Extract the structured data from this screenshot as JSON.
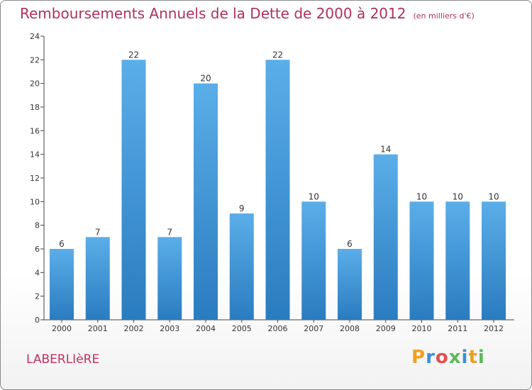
{
  "chart_data": {
    "type": "bar",
    "title": "Remboursements Annuels de la Dette de 2000 à 2012",
    "subtitle": "(en milliers d'€)",
    "categories": [
      "2000",
      "2001",
      "2002",
      "2003",
      "2004",
      "2005",
      "2006",
      "2007",
      "2008",
      "2009",
      "2010",
      "2011",
      "2012"
    ],
    "values": [
      6,
      7,
      22,
      7,
      20,
      9,
      22,
      10,
      6,
      14,
      10,
      10,
      10
    ],
    "ylim": [
      0,
      24
    ],
    "yticks": [
      0,
      2,
      4,
      6,
      8,
      10,
      12,
      14,
      16,
      18,
      20,
      22,
      24
    ],
    "grid": false,
    "legend": "none",
    "colors": {
      "bar_top": "#5aaee8",
      "bar_bottom": "#2a7cc0",
      "title": "#b0305d"
    }
  },
  "location": "LABERLIèRE",
  "logo": {
    "letters": [
      {
        "char": "P",
        "color": "#f0a020"
      },
      {
        "char": "r",
        "color": "#3a8fd8"
      },
      {
        "char": "o",
        "color": "#e05050"
      },
      {
        "char": "x",
        "color": "#5cb85c"
      },
      {
        "char": "i",
        "color": "#3a8fd8"
      },
      {
        "char": "t",
        "color": "#e8a020"
      },
      {
        "char": "i",
        "color": "#5cb85c"
      }
    ]
  }
}
